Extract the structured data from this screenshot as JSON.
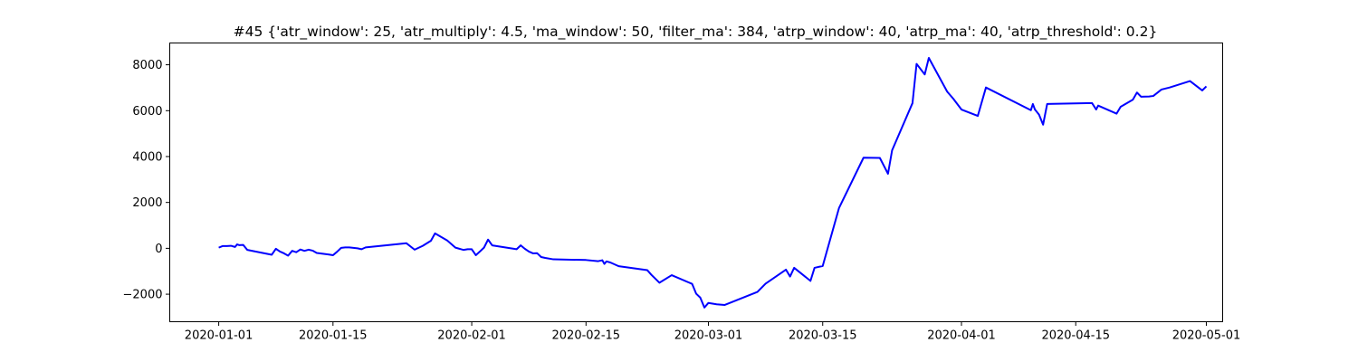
{
  "chart_data": {
    "type": "line",
    "title": "#45 {'atr_window': 25, 'atr_multiply': 4.5, 'ma_window': 50, 'filter_ma': 384, 'atrp_window': 40, 'atrp_ma': 40, 'atrp_threshold': 0.2}",
    "xlabel": "",
    "ylabel": "",
    "grid": false,
    "x_type": "date",
    "xlim": [
      "2019-12-26",
      "2020-05-03"
    ],
    "ylim": [
      -3200,
      8950
    ],
    "x_ticks": [
      "2020-01-01",
      "2020-01-15",
      "2020-02-01",
      "2020-02-15",
      "2020-03-01",
      "2020-03-15",
      "2020-04-01",
      "2020-04-15",
      "2020-05-01"
    ],
    "y_ticks": [
      -2000,
      0,
      2000,
      4000,
      6000,
      8000
    ],
    "y_tick_labels": [
      "−2000",
      "0",
      "2000",
      "4000",
      "6000",
      "8000"
    ],
    "series": [
      {
        "color": "#0000ff",
        "points": [
          [
            "2020-01-01",
            30
          ],
          [
            "2020-01-01 12:00",
            100
          ],
          [
            "2020-01-02",
            100
          ],
          [
            "2020-01-02 12:00",
            110
          ],
          [
            "2020-01-03",
            60
          ],
          [
            "2020-01-03 06:00",
            170
          ],
          [
            "2020-01-03 12:00",
            140
          ],
          [
            "2020-01-04",
            150
          ],
          [
            "2020-01-04 12:00",
            -70
          ],
          [
            "2020-01-07 12:00",
            -280
          ],
          [
            "2020-01-08",
            -20
          ],
          [
            "2020-01-08 12:00",
            -140
          ],
          [
            "2020-01-09",
            -220
          ],
          [
            "2020-01-09 12:00",
            -320
          ],
          [
            "2020-01-10",
            -110
          ],
          [
            "2020-01-10 12:00",
            -170
          ],
          [
            "2020-01-11",
            -50
          ],
          [
            "2020-01-11 12:00",
            -110
          ],
          [
            "2020-01-12",
            -60
          ],
          [
            "2020-01-12 12:00",
            -100
          ],
          [
            "2020-01-13",
            -200
          ],
          [
            "2020-01-14 12:00",
            -270
          ],
          [
            "2020-01-15",
            -300
          ],
          [
            "2020-01-15 12:00",
            -150
          ],
          [
            "2020-01-16",
            20
          ],
          [
            "2020-01-16 12:00",
            40
          ],
          [
            "2020-01-17",
            40
          ],
          [
            "2020-01-18",
            0
          ],
          [
            "2020-01-18 12:00",
            -40
          ],
          [
            "2020-01-19",
            40
          ],
          [
            "2020-01-24",
            220
          ],
          [
            "2020-01-25",
            -60
          ],
          [
            "2020-01-26",
            110
          ],
          [
            "2020-01-27",
            330
          ],
          [
            "2020-01-27 12:00",
            650
          ],
          [
            "2020-01-29",
            340
          ],
          [
            "2020-01-30",
            30
          ],
          [
            "2020-01-31",
            -70
          ],
          [
            "2020-01-31 12:00",
            -40
          ],
          [
            "2020-02-01",
            -40
          ],
          [
            "2020-02-01 12:00",
            -300
          ],
          [
            "2020-02-02",
            -140
          ],
          [
            "2020-02-02 12:00",
            30
          ],
          [
            "2020-02-03",
            380
          ],
          [
            "2020-02-03 12:00",
            130
          ],
          [
            "2020-02-06 12:00",
            -40
          ],
          [
            "2020-02-07",
            130
          ],
          [
            "2020-02-07 12:00",
            -20
          ],
          [
            "2020-02-08",
            -140
          ],
          [
            "2020-02-08 12:00",
            -220
          ],
          [
            "2020-02-09",
            -210
          ],
          [
            "2020-02-09 12:00",
            -380
          ],
          [
            "2020-02-10",
            -420
          ],
          [
            "2020-02-11",
            -480
          ],
          [
            "2020-02-15",
            -510
          ],
          [
            "2020-02-16 12:00",
            -560
          ],
          [
            "2020-02-17",
            -520
          ],
          [
            "2020-02-17 06:00",
            -680
          ],
          [
            "2020-02-17 12:00",
            -570
          ],
          [
            "2020-02-18",
            -620
          ],
          [
            "2020-02-19",
            -780
          ],
          [
            "2020-02-22 12:00",
            -950
          ],
          [
            "2020-02-23",
            -1150
          ],
          [
            "2020-02-24",
            -1500
          ],
          [
            "2020-02-25 12:00",
            -1170
          ],
          [
            "2020-02-28",
            -1550
          ],
          [
            "2020-02-28 12:00",
            -1980
          ],
          [
            "2020-02-29",
            -2150
          ],
          [
            "2020-02-29 12:00",
            -2580
          ],
          [
            "2020-03-01",
            -2380
          ],
          [
            "2020-03-02",
            -2440
          ],
          [
            "2020-03-03",
            -2470
          ],
          [
            "2020-03-07",
            -1900
          ],
          [
            "2020-03-08",
            -1540
          ],
          [
            "2020-03-10 12:00",
            -930
          ],
          [
            "2020-03-11",
            -1230
          ],
          [
            "2020-03-11 12:00",
            -850
          ],
          [
            "2020-03-13 12:00",
            -1420
          ],
          [
            "2020-03-14",
            -850
          ],
          [
            "2020-03-15",
            -770
          ],
          [
            "2020-03-17",
            1760
          ],
          [
            "2020-03-20",
            3950
          ],
          [
            "2020-03-22",
            3940
          ],
          [
            "2020-03-23",
            3250
          ],
          [
            "2020-03-23 12:00",
            4270
          ],
          [
            "2020-03-26",
            6330
          ],
          [
            "2020-03-26 12:00",
            8040
          ],
          [
            "2020-03-27 12:00",
            7580
          ],
          [
            "2020-03-28",
            8300
          ],
          [
            "2020-03-30 06:00",
            6830
          ],
          [
            "2020-03-31",
            6520
          ],
          [
            "2020-04-01",
            6050
          ],
          [
            "2020-04-03",
            5770
          ],
          [
            "2020-04-04",
            7010
          ],
          [
            "2020-04-09 12:00",
            6020
          ],
          [
            "2020-04-09 18:00",
            6290
          ],
          [
            "2020-04-10",
            6050
          ],
          [
            "2020-04-10 12:00",
            5830
          ],
          [
            "2020-04-11",
            5390
          ],
          [
            "2020-04-11 12:00",
            6290
          ],
          [
            "2020-04-17",
            6330
          ],
          [
            "2020-04-17 12:00",
            6050
          ],
          [
            "2020-04-17 18:00",
            6220
          ],
          [
            "2020-04-20",
            5870
          ],
          [
            "2020-04-20 12:00",
            6170
          ],
          [
            "2020-04-22",
            6480
          ],
          [
            "2020-04-22 12:00",
            6790
          ],
          [
            "2020-04-23",
            6610
          ],
          [
            "2020-04-24",
            6620
          ],
          [
            "2020-04-24 12:00",
            6640
          ],
          [
            "2020-04-25 12:00",
            6920
          ],
          [
            "2020-04-26 12:00",
            7010
          ],
          [
            "2020-04-29",
            7290
          ],
          [
            "2020-04-30 12:00",
            6880
          ],
          [
            "2020-05-01",
            7060
          ]
        ]
      }
    ]
  }
}
